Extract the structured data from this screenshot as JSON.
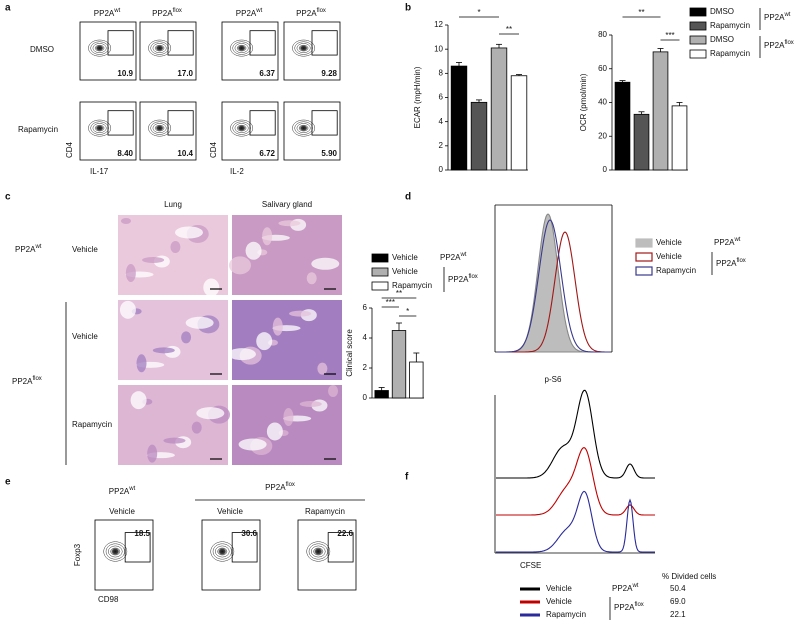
{
  "panels": {
    "a": {
      "label": "a",
      "headers": [
        {
          "text": "PP2A",
          "sup": "wt"
        },
        {
          "text": "PP2A",
          "sup": "flox"
        },
        {
          "text": "PP2A",
          "sup": "wt"
        },
        {
          "text": "PP2A",
          "sup": "flox"
        }
      ],
      "rows": [
        "DMSO",
        "Rapamycin"
      ],
      "gates": [
        [
          "10.9",
          "17.0",
          "6.37",
          "9.28"
        ],
        [
          "8.40",
          "10.4",
          "6.72",
          "5.90"
        ]
      ],
      "y_label": "CD4",
      "x_labels": [
        "IL-17",
        "IL-2"
      ]
    },
    "b": {
      "label": "b",
      "legend": [
        {
          "name": "DMSO",
          "color": "#000000"
        },
        {
          "name": "Rapamycin",
          "color": "#555555"
        },
        {
          "name": "DMSO",
          "color": "#b0b0b0"
        },
        {
          "name": "Rapamycin",
          "color": "#ffffff"
        }
      ],
      "groups": [
        {
          "text": "PP2A",
          "sup": "wt"
        },
        {
          "text": "PP2A",
          "sup": "flox"
        }
      ]
    },
    "c": {
      "label": "c",
      "columns": [
        "Lung",
        "Salivary gland"
      ],
      "groups": [
        {
          "text": "PP2A",
          "sup": "wt"
        },
        {
          "text": "PP2A",
          "sup": "flox"
        }
      ],
      "rows": [
        "Vehicle",
        "Vehicle",
        "Rapamycin"
      ],
      "legend": [
        {
          "name": "Vehicle",
          "color": "#000000"
        },
        {
          "name": "Vehicle",
          "color": "#b0b0b0"
        },
        {
          "name": "Rapamycin",
          "color": "#ffffff"
        }
      ],
      "legend_groups": [
        {
          "text": "PP2A",
          "sup": "wt"
        },
        {
          "text": "PP2A",
          "sup": "flox"
        }
      ]
    },
    "d": {
      "label": "d",
      "x_label": "p-S6",
      "legend": [
        {
          "name": "Vehicle",
          "color": "#bdbdbd"
        },
        {
          "name": "Vehicle",
          "color": "#a01818"
        },
        {
          "name": "Rapamycin",
          "color": "#3a3a8c"
        }
      ],
      "legend_groups": [
        {
          "text": "PP2A",
          "sup": "wt"
        },
        {
          "text": "PP2A",
          "sup": "flox"
        }
      ]
    },
    "e": {
      "label": "e",
      "groups": [
        {
          "text": "PP2A",
          "sup": "wt"
        },
        {
          "text": "PP2A",
          "sup": "flox"
        }
      ],
      "conditions": [
        "Vehicle",
        "Vehicle",
        "Rapamycin"
      ],
      "gates": [
        "18.5",
        "30.6",
        "22.6"
      ],
      "y_label": "Foxp3",
      "x_label": "CD98"
    },
    "f": {
      "label": "f",
      "x_label": "CFSE",
      "column_header": "% Divided cells",
      "rows": [
        {
          "name": "Vehicle",
          "color": "#000000",
          "value": "50.4"
        },
        {
          "name": "Vehicle",
          "color": "#c00000",
          "value": "69.0"
        },
        {
          "name": "Rapamycin",
          "color": "#2a2a9a",
          "value": "22.1"
        }
      ],
      "legend_groups": [
        {
          "text": "PP2A",
          "sup": "wt"
        },
        {
          "text": "PP2A",
          "sup": "flox"
        }
      ]
    }
  },
  "chart_data": [
    {
      "type": "bar",
      "y_label": "ECAR (mpH/min)",
      "values": [
        8.6,
        5.6,
        10.1,
        7.8
      ],
      "errors": [
        0.3,
        0.2,
        0.3,
        0.1
      ],
      "colors": [
        "#000000",
        "#555555",
        "#b0b0b0",
        "#ffffff"
      ],
      "ylim": [
        0,
        12
      ],
      "yticks": [
        0,
        2,
        4,
        6,
        8,
        10,
        12
      ],
      "annotations": [
        "*",
        "**"
      ]
    },
    {
      "type": "bar",
      "y_label": "OCR (pmol/min)",
      "values": [
        52,
        33,
        70,
        38
      ],
      "errors": [
        1,
        1.5,
        2,
        2
      ],
      "colors": [
        "#000000",
        "#555555",
        "#b0b0b0",
        "#ffffff"
      ],
      "ylim": [
        0,
        80
      ],
      "yticks": [
        0,
        20,
        40,
        60,
        80
      ],
      "annotations": [
        "**",
        "***"
      ]
    },
    {
      "type": "bar",
      "y_label": "Clinical score",
      "values": [
        0.5,
        4.5,
        2.4
      ],
      "errors": [
        0.2,
        0.5,
        0.6
      ],
      "colors": [
        "#000000",
        "#b0b0b0",
        "#ffffff"
      ],
      "ylim": [
        0,
        6
      ],
      "yticks": [
        0,
        2,
        4,
        6
      ],
      "annotations": [
        "**",
        "***",
        "*"
      ]
    }
  ]
}
